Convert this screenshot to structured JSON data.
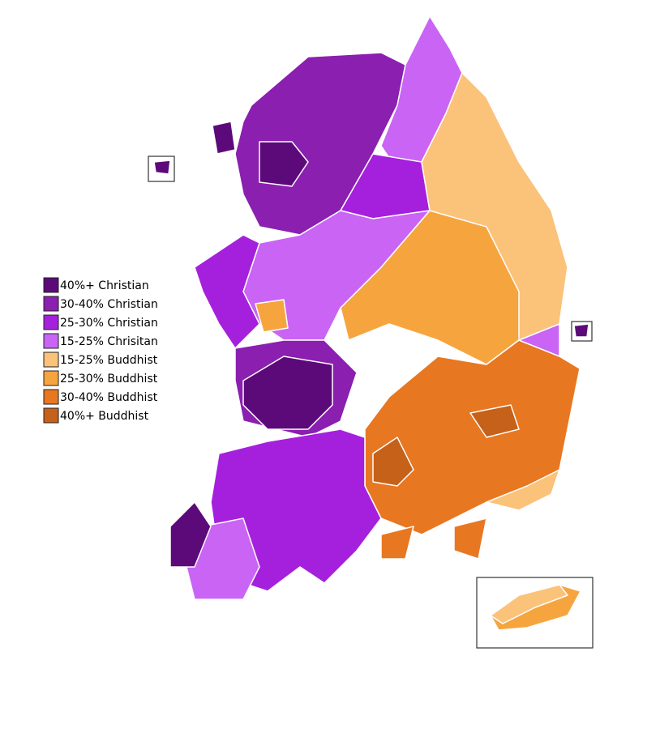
{
  "legend": [
    {
      "label": "40%+ Christian",
      "color": "#5c0a7a"
    },
    {
      "label": "30-40% Christian",
      "color": "#8a1fb0"
    },
    {
      "label": "25-30% Christian",
      "color": "#a520dc"
    },
    {
      "label": "15-25% Chrisitan",
      "color": "#c964f5"
    },
    {
      "label": "15-25% Buddhist",
      "color": "#fbc27a"
    },
    {
      "label": "25-30% Buddhist",
      "color": "#f6a53e"
    },
    {
      "label": "30-40% Buddhist",
      "color": "#e87722"
    },
    {
      "label": "40%+ Buddhist",
      "color": "#c6611a"
    }
  ]
}
